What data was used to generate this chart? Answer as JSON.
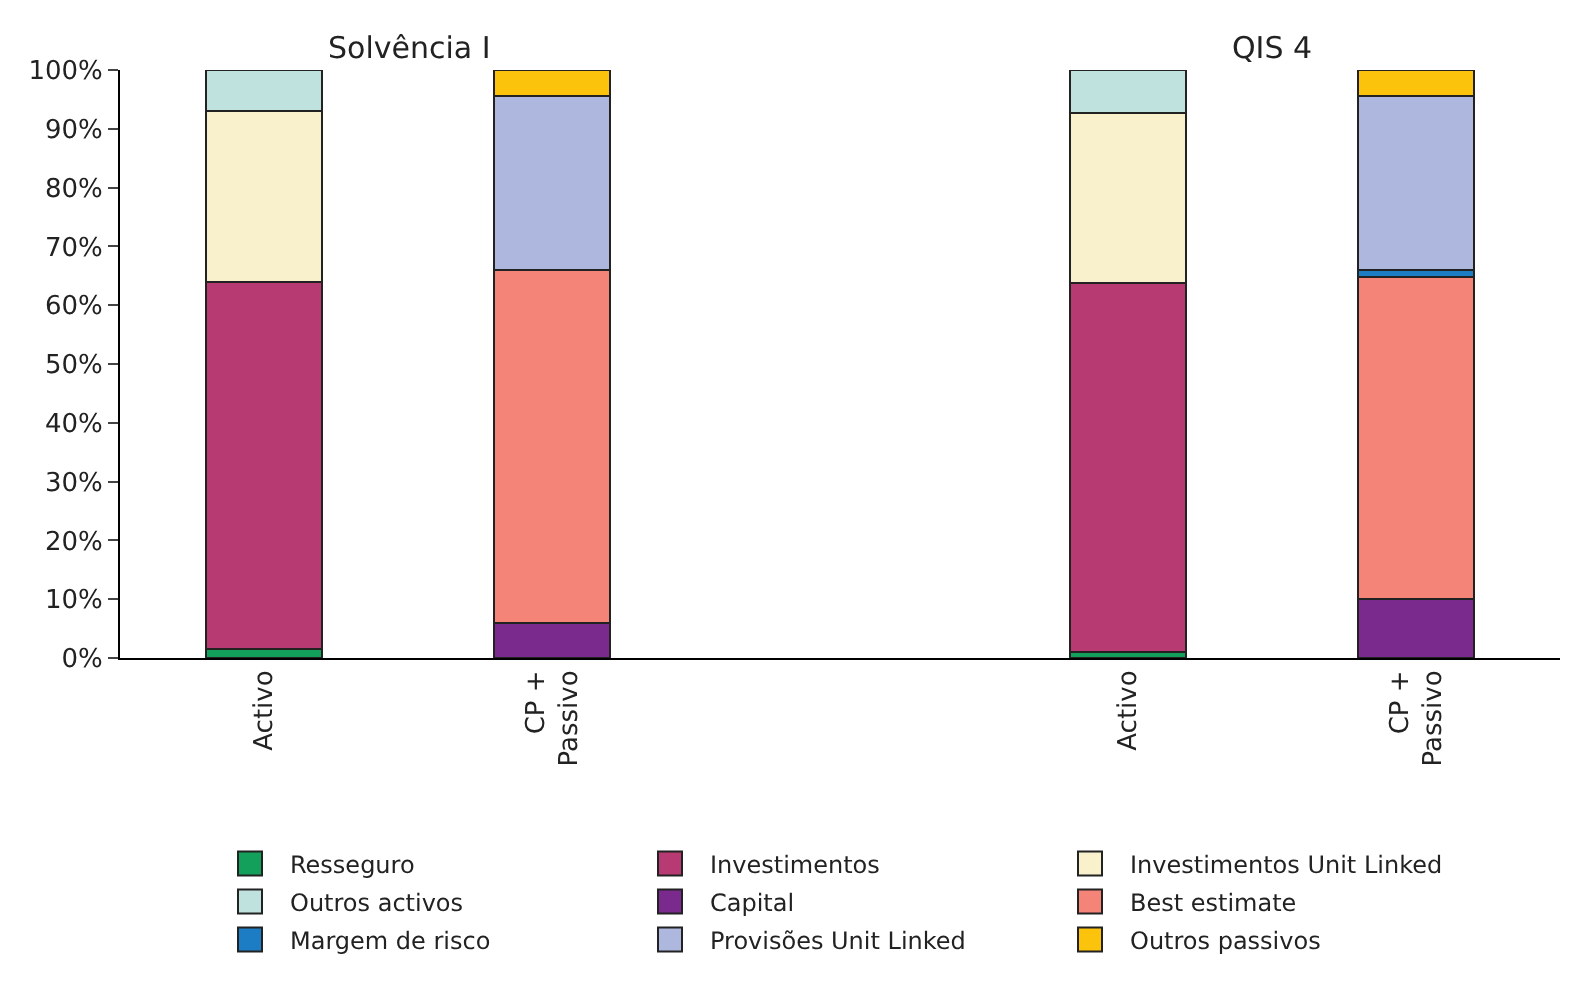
{
  "chart_data": {
    "type": "bar",
    "stacked": true,
    "categories": [
      "Activo",
      "CP +\nPassivo",
      null,
      "Activo",
      "CP +\nPassivo"
    ],
    "ylim": [
      0,
      100
    ],
    "yticks": [
      {
        "value": 0,
        "label": "0%"
      },
      {
        "value": 10,
        "label": "10%"
      },
      {
        "value": 20,
        "label": "20%"
      },
      {
        "value": 30,
        "label": "30%"
      },
      {
        "value": 40,
        "label": "40%"
      },
      {
        "value": 50,
        "label": "50%"
      },
      {
        "value": 60,
        "label": "60%"
      },
      {
        "value": 70,
        "label": "70%"
      },
      {
        "value": 80,
        "label": "80%"
      },
      {
        "value": 90,
        "label": "90%"
      },
      {
        "value": 100,
        "label": "100%"
      }
    ],
    "legend": "bottom",
    "annotations": [
      "Solvência I",
      "QIS 4"
    ],
    "series": [
      {
        "name": "Resseguro",
        "color": "#13a05a",
        "values": [
          1.5,
          null,
          null,
          1,
          null
        ]
      },
      {
        "name": "Investimentos",
        "color": "#b83a72",
        "values": [
          62.5,
          null,
          null,
          62.7,
          null
        ]
      },
      {
        "name": "Investimentos Unit Linked",
        "color": "#f8f1cc",
        "values": [
          29,
          null,
          null,
          29,
          null
        ]
      },
      {
        "name": "Outros activos",
        "color": "#c0e2de",
        "values": [
          7,
          null,
          null,
          7.3,
          null
        ]
      },
      {
        "name": "Capital",
        "color": "#7a2a8c",
        "values": [
          null,
          6,
          null,
          null,
          10
        ]
      },
      {
        "name": "Best estimate",
        "color": "#f48378",
        "values": [
          null,
          60,
          null,
          null,
          54.8
        ]
      },
      {
        "name": "Margem de risco",
        "color": "#1c7cc4",
        "values": [
          null,
          null,
          null,
          null,
          1.2
        ]
      },
      {
        "name": "Provisões Unit Linked",
        "color": "#aeb7de",
        "values": [
          null,
          29.5,
          null,
          null,
          29.5
        ]
      },
      {
        "name": "Outros passivos",
        "color": "#fcc30d",
        "values": [
          null,
          4.5,
          null,
          null,
          4.5
        ]
      }
    ]
  }
}
